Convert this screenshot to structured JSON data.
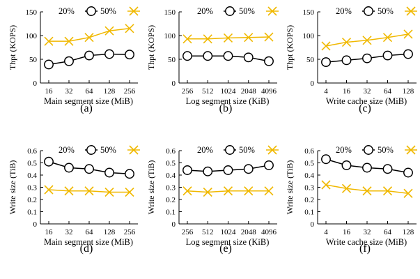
{
  "figure": {
    "colors": {
      "series_20": "#000000",
      "series_50": "#f0b800",
      "axis": "#000000"
    },
    "marker_icons": {
      "series_20": "circle-marker-icon",
      "series_50": "x-marker-icon"
    }
  },
  "chart_data": [
    {
      "id": "a",
      "type": "line",
      "caption": "(a)",
      "xlabel": "Main segment size (MiB)",
      "ylabel": "Thpt (KOPS)",
      "categories": [
        "16",
        "32",
        "64",
        "128",
        "256"
      ],
      "ylim": [
        0,
        150
      ],
      "yticks": [
        "0",
        "50",
        "100",
        "150"
      ],
      "legend_position": "top",
      "series": [
        {
          "name": "20%",
          "values": [
            39,
            46,
            58,
            61,
            60
          ]
        },
        {
          "name": "50%",
          "values": [
            88,
            88,
            96,
            110,
            115
          ]
        }
      ]
    },
    {
      "id": "b",
      "type": "line",
      "caption": "(b)",
      "xlabel": "Log segment size (KiB)",
      "ylabel": "Thpt (KOPS)",
      "categories": [
        "256",
        "512",
        "1024",
        "2048",
        "4096"
      ],
      "ylim": [
        0,
        150
      ],
      "yticks": [
        "0",
        "50",
        "100",
        "150"
      ],
      "legend_position": "top",
      "series": [
        {
          "name": "20%",
          "values": [
            57,
            57,
            57,
            54,
            46
          ]
        },
        {
          "name": "50%",
          "values": [
            93,
            93,
            95,
            96,
            97
          ]
        }
      ]
    },
    {
      "id": "c",
      "type": "line",
      "caption": "(c)",
      "xlabel": "Write cache size (MiB)",
      "ylabel": "Thpt (KOPS)",
      "categories": [
        "4",
        "16",
        "32",
        "64",
        "128"
      ],
      "ylim": [
        0,
        150
      ],
      "yticks": [
        "0",
        "50",
        "100",
        "150"
      ],
      "legend_position": "top",
      "series": [
        {
          "name": "20%",
          "values": [
            44,
            48,
            52,
            58,
            61
          ]
        },
        {
          "name": "50%",
          "values": [
            78,
            86,
            90,
            96,
            103
          ]
        }
      ]
    },
    {
      "id": "d",
      "type": "line",
      "caption": "(d)",
      "xlabel": "Main segment size (MiB)",
      "ylabel": "Write size (TiB)",
      "categories": [
        "16",
        "32",
        "64",
        "128",
        "256"
      ],
      "ylim": [
        0,
        0.6
      ],
      "yticks": [
        "0",
        "0.1",
        "0.2",
        "0.3",
        "0.4",
        "0.5",
        "0.6"
      ],
      "legend_position": "top",
      "series": [
        {
          "name": "20%",
          "values": [
            0.51,
            0.46,
            0.45,
            0.42,
            0.41
          ]
        },
        {
          "name": "50%",
          "values": [
            0.28,
            0.27,
            0.27,
            0.26,
            0.26
          ]
        }
      ]
    },
    {
      "id": "e",
      "type": "line",
      "caption": "(e)",
      "xlabel": "Log segment size (KiB)",
      "ylabel": "Write size (TiB)",
      "categories": [
        "256",
        "512",
        "1024",
        "2048",
        "4096"
      ],
      "ylim": [
        0,
        0.6
      ],
      "yticks": [
        "0",
        "0.1",
        "0.2",
        "0.3",
        "0.4",
        "0.5",
        "0.6"
      ],
      "legend_position": "top",
      "series": [
        {
          "name": "20%",
          "values": [
            0.44,
            0.43,
            0.44,
            0.45,
            0.48
          ]
        },
        {
          "name": "50%",
          "values": [
            0.27,
            0.26,
            0.27,
            0.27,
            0.27
          ]
        }
      ]
    },
    {
      "id": "f",
      "type": "line",
      "caption": "(f)",
      "xlabel": "Write cache size (MiB)",
      "ylabel": "Write size (TiB)",
      "categories": [
        "4",
        "16",
        "32",
        "64",
        "128"
      ],
      "ylim": [
        0,
        0.6
      ],
      "yticks": [
        "0",
        "0.1",
        "0.2",
        "0.3",
        "0.4",
        "0.5",
        "0.6"
      ],
      "legend_position": "top",
      "series": [
        {
          "name": "20%",
          "values": [
            0.53,
            0.48,
            0.46,
            0.45,
            0.42
          ]
        },
        {
          "name": "50%",
          "values": [
            0.32,
            0.29,
            0.27,
            0.27,
            0.25
          ]
        }
      ]
    }
  ]
}
